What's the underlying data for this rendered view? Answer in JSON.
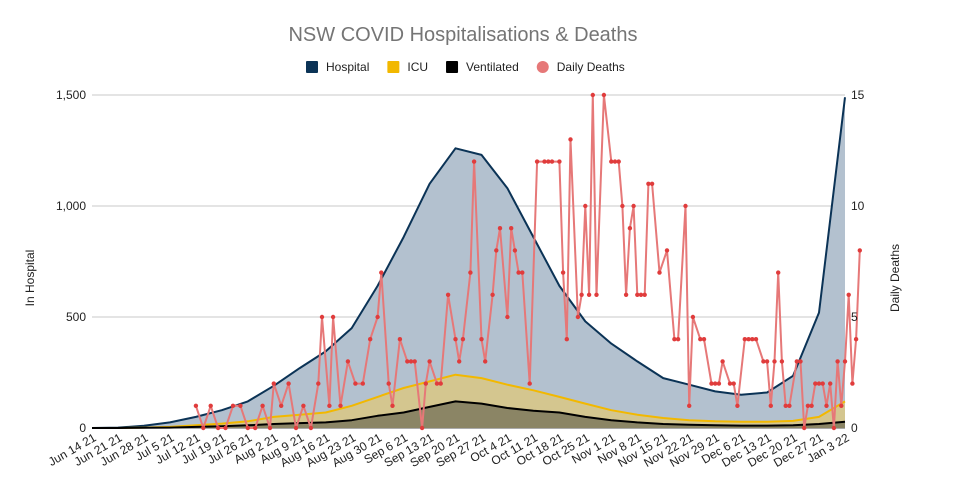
{
  "chart_data": {
    "type": "area",
    "title": "NSW COVID Hospitalisations & Deaths",
    "ylabel": "In Hospital",
    "y2label": "Daily Deaths",
    "ylim": [
      0,
      1500
    ],
    "y2lim": [
      0,
      15
    ],
    "y_ticks": [
      "0",
      "500",
      "1,000",
      "1,500"
    ],
    "y2_ticks": [
      "0",
      "5",
      "10",
      "15"
    ],
    "x_range": [
      "2021-06-14",
      "2022-01-03"
    ],
    "x_ticks": [
      {
        "date": "2021-06-14",
        "label": "Jun 14 21"
      },
      {
        "date": "2021-06-21",
        "label": "Jun 21 21"
      },
      {
        "date": "2021-06-28",
        "label": "Jun 28 21"
      },
      {
        "date": "2021-07-05",
        "label": "Jul 5 21"
      },
      {
        "date": "2021-07-12",
        "label": "Jul 12 21"
      },
      {
        "date": "2021-07-19",
        "label": "Jul 19 21"
      },
      {
        "date": "2021-07-26",
        "label": "Jul 26 21"
      },
      {
        "date": "2021-08-02",
        "label": "Aug 2 21"
      },
      {
        "date": "2021-08-09",
        "label": "Aug 9 21"
      },
      {
        "date": "2021-08-16",
        "label": "Aug 16 21"
      },
      {
        "date": "2021-08-23",
        "label": "Aug 23 21"
      },
      {
        "date": "2021-08-30",
        "label": "Aug 30 21"
      },
      {
        "date": "2021-09-06",
        "label": "Sep 6 21"
      },
      {
        "date": "2021-09-13",
        "label": "Sep 13 21"
      },
      {
        "date": "2021-09-20",
        "label": "Sep 20 21"
      },
      {
        "date": "2021-09-27",
        "label": "Sep 27 21"
      },
      {
        "date": "2021-10-04",
        "label": "Oct 4 21"
      },
      {
        "date": "2021-10-11",
        "label": "Oct 11 21"
      },
      {
        "date": "2021-10-18",
        "label": "Oct 18 21"
      },
      {
        "date": "2021-10-25",
        "label": "Oct 25 21"
      },
      {
        "date": "2021-11-01",
        "label": "Nov 1 21"
      },
      {
        "date": "2021-11-08",
        "label": "Nov 8 21"
      },
      {
        "date": "2021-11-15",
        "label": "Nov 15 21"
      },
      {
        "date": "2021-11-22",
        "label": "Nov 22 21"
      },
      {
        "date": "2021-11-29",
        "label": "Nov 29 21"
      },
      {
        "date": "2021-12-06",
        "label": "Dec 6 21"
      },
      {
        "date": "2021-12-13",
        "label": "Dec 13 21"
      },
      {
        "date": "2021-12-20",
        "label": "Dec 20 21"
      },
      {
        "date": "2021-12-27",
        "label": "Dec 27 21"
      },
      {
        "date": "2022-01-03",
        "label": "Jan 3 22"
      }
    ],
    "legend_position": "top",
    "grid": true,
    "series": [
      {
        "name": "Hospital",
        "kind": "area",
        "axis": "left",
        "color": "#0b3356",
        "fill": "#b3c1cf",
        "points": [
          [
            "2021-06-14",
            0
          ],
          [
            "2021-06-21",
            2
          ],
          [
            "2021-06-28",
            10
          ],
          [
            "2021-07-05",
            25
          ],
          [
            "2021-07-12",
            50
          ],
          [
            "2021-07-19",
            80
          ],
          [
            "2021-07-26",
            120
          ],
          [
            "2021-08-02",
            190
          ],
          [
            "2021-08-09",
            270
          ],
          [
            "2021-08-16",
            345
          ],
          [
            "2021-08-23",
            450
          ],
          [
            "2021-08-30",
            640
          ],
          [
            "2021-09-06",
            860
          ],
          [
            "2021-09-13",
            1100
          ],
          [
            "2021-09-20",
            1260
          ],
          [
            "2021-09-27",
            1230
          ],
          [
            "2021-10-04",
            1080
          ],
          [
            "2021-10-11",
            860
          ],
          [
            "2021-10-18",
            640
          ],
          [
            "2021-10-25",
            480
          ],
          [
            "2021-11-01",
            380
          ],
          [
            "2021-11-08",
            300
          ],
          [
            "2021-11-15",
            225
          ],
          [
            "2021-11-22",
            195
          ],
          [
            "2021-11-29",
            165
          ],
          [
            "2021-12-06",
            150
          ],
          [
            "2021-12-13",
            160
          ],
          [
            "2021-12-20",
            235
          ],
          [
            "2021-12-27",
            520
          ],
          [
            "2022-01-03",
            1490
          ]
        ]
      },
      {
        "name": "ICU",
        "kind": "area",
        "axis": "left",
        "color": "#f2b800",
        "fill": "#d4c68f",
        "points": [
          [
            "2021-06-14",
            0
          ],
          [
            "2021-06-21",
            0
          ],
          [
            "2021-06-28",
            2
          ],
          [
            "2021-07-05",
            5
          ],
          [
            "2021-07-12",
            12
          ],
          [
            "2021-07-19",
            20
          ],
          [
            "2021-07-26",
            30
          ],
          [
            "2021-08-02",
            50
          ],
          [
            "2021-08-09",
            60
          ],
          [
            "2021-08-16",
            70
          ],
          [
            "2021-08-23",
            100
          ],
          [
            "2021-08-30",
            140
          ],
          [
            "2021-09-06",
            180
          ],
          [
            "2021-09-13",
            210
          ],
          [
            "2021-09-20",
            240
          ],
          [
            "2021-09-27",
            225
          ],
          [
            "2021-10-04",
            195
          ],
          [
            "2021-10-11",
            170
          ],
          [
            "2021-10-18",
            140
          ],
          [
            "2021-10-25",
            110
          ],
          [
            "2021-11-01",
            80
          ],
          [
            "2021-11-08",
            60
          ],
          [
            "2021-11-15",
            45
          ],
          [
            "2021-11-22",
            35
          ],
          [
            "2021-11-29",
            30
          ],
          [
            "2021-12-06",
            28
          ],
          [
            "2021-12-13",
            28
          ],
          [
            "2021-12-20",
            32
          ],
          [
            "2021-12-27",
            50
          ],
          [
            "2022-01-03",
            120
          ]
        ]
      },
      {
        "name": "Ventilated",
        "kind": "area",
        "axis": "left",
        "color": "#000000",
        "fill": "#8b8565",
        "points": [
          [
            "2021-06-14",
            0
          ],
          [
            "2021-06-21",
            0
          ],
          [
            "2021-06-28",
            1
          ],
          [
            "2021-07-05",
            2
          ],
          [
            "2021-07-12",
            5
          ],
          [
            "2021-07-19",
            8
          ],
          [
            "2021-07-26",
            12
          ],
          [
            "2021-08-02",
            18
          ],
          [
            "2021-08-09",
            22
          ],
          [
            "2021-08-16",
            25
          ],
          [
            "2021-08-23",
            35
          ],
          [
            "2021-08-30",
            55
          ],
          [
            "2021-09-06",
            70
          ],
          [
            "2021-09-13",
            95
          ],
          [
            "2021-09-20",
            120
          ],
          [
            "2021-09-27",
            110
          ],
          [
            "2021-10-04",
            90
          ],
          [
            "2021-10-11",
            78
          ],
          [
            "2021-10-18",
            70
          ],
          [
            "2021-10-25",
            50
          ],
          [
            "2021-11-01",
            35
          ],
          [
            "2021-11-08",
            25
          ],
          [
            "2021-11-15",
            18
          ],
          [
            "2021-11-22",
            15
          ],
          [
            "2021-11-29",
            12
          ],
          [
            "2021-12-06",
            11
          ],
          [
            "2021-12-13",
            11
          ],
          [
            "2021-12-20",
            12
          ],
          [
            "2021-12-27",
            18
          ],
          [
            "2022-01-03",
            28
          ]
        ]
      },
      {
        "name": "Daily Deaths",
        "kind": "line+markers",
        "axis": "right",
        "color": "#e67878",
        "marker_color": "#e03c3c",
        "points": [
          [
            "2021-07-12",
            1
          ],
          [
            "2021-07-14",
            0
          ],
          [
            "2021-07-16",
            1
          ],
          [
            "2021-07-18",
            0
          ],
          [
            "2021-07-20",
            0
          ],
          [
            "2021-07-22",
            1
          ],
          [
            "2021-07-24",
            1
          ],
          [
            "2021-07-26",
            0
          ],
          [
            "2021-07-28",
            0
          ],
          [
            "2021-07-30",
            1
          ],
          [
            "2021-08-01",
            0
          ],
          [
            "2021-08-02",
            2
          ],
          [
            "2021-08-04",
            1
          ],
          [
            "2021-08-06",
            2
          ],
          [
            "2021-08-08",
            0
          ],
          [
            "2021-08-10",
            1
          ],
          [
            "2021-08-12",
            0
          ],
          [
            "2021-08-14",
            2
          ],
          [
            "2021-08-15",
            5
          ],
          [
            "2021-08-17",
            1
          ],
          [
            "2021-08-18",
            5
          ],
          [
            "2021-08-20",
            1
          ],
          [
            "2021-08-22",
            3
          ],
          [
            "2021-08-24",
            2
          ],
          [
            "2021-08-26",
            2
          ],
          [
            "2021-08-28",
            4
          ],
          [
            "2021-08-30",
            5
          ],
          [
            "2021-08-31",
            7
          ],
          [
            "2021-09-02",
            2
          ],
          [
            "2021-09-03",
            1
          ],
          [
            "2021-09-05",
            4
          ],
          [
            "2021-09-07",
            3
          ],
          [
            "2021-09-08",
            3
          ],
          [
            "2021-09-09",
            3
          ],
          [
            "2021-09-11",
            0
          ],
          [
            "2021-09-12",
            2
          ],
          [
            "2021-09-13",
            3
          ],
          [
            "2021-09-15",
            2
          ],
          [
            "2021-09-16",
            2
          ],
          [
            "2021-09-18",
            6
          ],
          [
            "2021-09-20",
            4
          ],
          [
            "2021-09-21",
            3
          ],
          [
            "2021-09-22",
            4
          ],
          [
            "2021-09-24",
            7
          ],
          [
            "2021-09-25",
            12
          ],
          [
            "2021-09-27",
            4
          ],
          [
            "2021-09-28",
            3
          ],
          [
            "2021-09-30",
            6
          ],
          [
            "2021-10-01",
            8
          ],
          [
            "2021-10-02",
            9
          ],
          [
            "2021-10-04",
            5
          ],
          [
            "2021-10-05",
            9
          ],
          [
            "2021-10-06",
            8
          ],
          [
            "2021-10-07",
            7
          ],
          [
            "2021-10-08",
            7
          ],
          [
            "2021-10-10",
            2
          ],
          [
            "2021-10-12",
            12
          ],
          [
            "2021-10-14",
            12
          ],
          [
            "2021-10-15",
            12
          ],
          [
            "2021-10-16",
            12
          ],
          [
            "2021-10-18",
            12
          ],
          [
            "2021-10-19",
            7
          ],
          [
            "2021-10-20",
            4
          ],
          [
            "2021-10-21",
            13
          ],
          [
            "2021-10-23",
            5
          ],
          [
            "2021-10-24",
            6
          ],
          [
            "2021-10-25",
            10
          ],
          [
            "2021-10-26",
            6
          ],
          [
            "2021-10-27",
            15
          ],
          [
            "2021-10-28",
            6
          ],
          [
            "2021-10-30",
            15
          ],
          [
            "2021-11-01",
            12
          ],
          [
            "2021-11-02",
            12
          ],
          [
            "2021-11-03",
            12
          ],
          [
            "2021-11-04",
            10
          ],
          [
            "2021-11-05",
            6
          ],
          [
            "2021-11-06",
            9
          ],
          [
            "2021-11-07",
            10
          ],
          [
            "2021-11-08",
            6
          ],
          [
            "2021-11-09",
            6
          ],
          [
            "2021-11-10",
            6
          ],
          [
            "2021-11-11",
            11
          ],
          [
            "2021-11-12",
            11
          ],
          [
            "2021-11-14",
            7
          ],
          [
            "2021-11-16",
            8
          ],
          [
            "2021-11-18",
            4
          ],
          [
            "2021-11-19",
            4
          ],
          [
            "2021-11-21",
            10
          ],
          [
            "2021-11-22",
            1
          ],
          [
            "2021-11-23",
            5
          ],
          [
            "2021-11-25",
            4
          ],
          [
            "2021-11-26",
            4
          ],
          [
            "2021-11-28",
            2
          ],
          [
            "2021-11-29",
            2
          ],
          [
            "2021-11-30",
            2
          ],
          [
            "2021-12-01",
            3
          ],
          [
            "2021-12-03",
            2
          ],
          [
            "2021-12-04",
            2
          ],
          [
            "2021-12-05",
            1
          ],
          [
            "2021-12-07",
            4
          ],
          [
            "2021-12-08",
            4
          ],
          [
            "2021-12-09",
            4
          ],
          [
            "2021-12-10",
            4
          ],
          [
            "2021-12-12",
            3
          ],
          [
            "2021-12-13",
            3
          ],
          [
            "2021-12-14",
            1
          ],
          [
            "2021-12-15",
            3
          ],
          [
            "2021-12-16",
            7
          ],
          [
            "2021-12-17",
            3
          ],
          [
            "2021-12-18",
            1
          ],
          [
            "2021-12-19",
            1
          ],
          [
            "2021-12-21",
            3
          ],
          [
            "2021-12-22",
            3
          ],
          [
            "2021-12-23",
            0
          ],
          [
            "2021-12-24",
            1
          ],
          [
            "2021-12-25",
            1
          ],
          [
            "2021-12-26",
            2
          ],
          [
            "2021-12-27",
            2
          ],
          [
            "2021-12-28",
            2
          ],
          [
            "2021-12-29",
            1
          ],
          [
            "2021-12-30",
            2
          ],
          [
            "2021-12-31",
            0
          ],
          [
            "2022-01-01",
            3
          ],
          [
            "2022-01-02",
            1
          ],
          [
            "2022-01-03",
            3
          ],
          [
            "2022-01-04",
            6
          ],
          [
            "2022-01-05",
            2
          ],
          [
            "2022-01-06",
            4
          ],
          [
            "2022-01-07",
            8
          ]
        ]
      }
    ]
  }
}
